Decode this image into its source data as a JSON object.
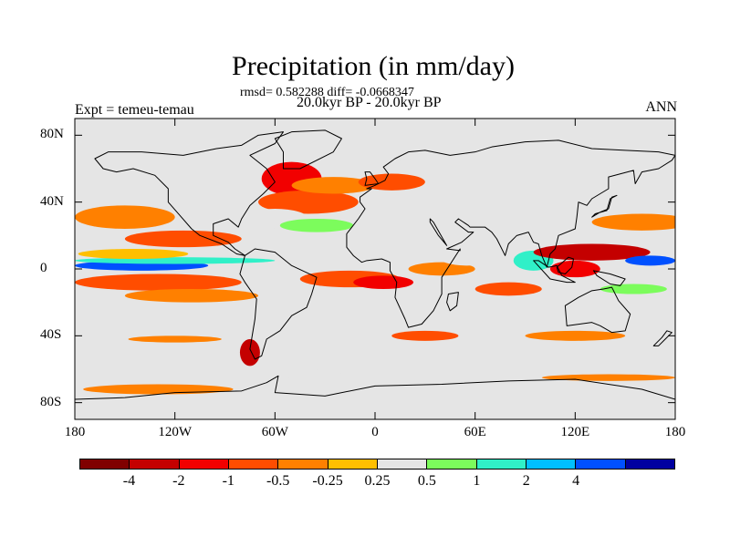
{
  "title": "Precipitation (in mm/day)",
  "stats_line": "rmsd= 0.582288 diff= -0.0668347",
  "period_line": "20.0kyr BP - 20.0kyr BP",
  "experiment_label": "Expt = temeu-temau",
  "season_label": "ANN",
  "map": {
    "projection": "cylindrical equidistant",
    "lon_range": [
      -180,
      180
    ],
    "lat_range": [
      -90,
      90
    ],
    "ocean_background": "#e5e5e5",
    "lat_ticks": [
      {
        "value": 80,
        "label": "80N"
      },
      {
        "value": 40,
        "label": "40N"
      },
      {
        "value": 0,
        "label": "0"
      },
      {
        "value": -40,
        "label": "40S"
      },
      {
        "value": -80,
        "label": "80S"
      }
    ],
    "lon_ticks": [
      {
        "value": -180,
        "label": "180"
      },
      {
        "value": -120,
        "label": "120W"
      },
      {
        "value": -60,
        "label": "60W"
      },
      {
        "value": 0,
        "label": "0"
      },
      {
        "value": 60,
        "label": "60E"
      },
      {
        "value": 120,
        "label": "120E"
      },
      {
        "value": 180,
        "label": "180"
      }
    ],
    "anomaly_patches": [
      {
        "lon": -150,
        "lat": 31,
        "rx": 30,
        "ry": 7,
        "level": 4
      },
      {
        "lon": -115,
        "lat": 18,
        "rx": 35,
        "ry": 5,
        "level": 3
      },
      {
        "lon": -140,
        "lat": 2,
        "rx": 40,
        "ry": 3,
        "level": 10
      },
      {
        "lon": -120,
        "lat": 5,
        "rx": 60,
        "ry": 2,
        "level": 8
      },
      {
        "lon": -145,
        "lat": 9,
        "rx": 33,
        "ry": 3,
        "level": 5
      },
      {
        "lon": -130,
        "lat": -8,
        "rx": 50,
        "ry": 5,
        "level": 3
      },
      {
        "lon": -110,
        "lat": -16,
        "rx": 40,
        "ry": 4,
        "level": 4
      },
      {
        "lon": -50,
        "lat": 54,
        "rx": 18,
        "ry": 10,
        "level": 2
      },
      {
        "lon": -40,
        "lat": 40,
        "rx": 30,
        "ry": 7,
        "level": 3
      },
      {
        "lon": -25,
        "lat": 50,
        "rx": 25,
        "ry": 5,
        "level": 4
      },
      {
        "lon": -60,
        "lat": 30,
        "rx": 20,
        "ry": 6,
        "level": 6
      },
      {
        "lon": -35,
        "lat": 26,
        "rx": 22,
        "ry": 4,
        "level": 7
      },
      {
        "lon": 10,
        "lat": 52,
        "rx": 20,
        "ry": 5,
        "level": 3
      },
      {
        "lon": 25,
        "lat": 62,
        "rx": 15,
        "ry": 4,
        "level": 6
      },
      {
        "lon": -15,
        "lat": -6,
        "rx": 30,
        "ry": 5,
        "level": 3
      },
      {
        "lon": 5,
        "lat": -8,
        "rx": 18,
        "ry": 4,
        "level": 2
      },
      {
        "lon": 40,
        "lat": 0,
        "rx": 20,
        "ry": 4,
        "level": 4
      },
      {
        "lon": 55,
        "lat": 8,
        "rx": 18,
        "ry": 6,
        "level": 6
      },
      {
        "lon": 80,
        "lat": -12,
        "rx": 20,
        "ry": 4,
        "level": 3
      },
      {
        "lon": 95,
        "lat": 5,
        "rx": 12,
        "ry": 6,
        "level": 8
      },
      {
        "lon": 130,
        "lat": 10,
        "rx": 35,
        "ry": 5,
        "level": 1
      },
      {
        "lon": 120,
        "lat": 0,
        "rx": 15,
        "ry": 5,
        "level": 2
      },
      {
        "lon": 160,
        "lat": 28,
        "rx": 30,
        "ry": 5,
        "level": 4
      },
      {
        "lon": 165,
        "lat": 5,
        "rx": 15,
        "ry": 3,
        "level": 10
      },
      {
        "lon": 155,
        "lat": -12,
        "rx": 20,
        "ry": 3,
        "level": 7
      },
      {
        "lon": -120,
        "lat": -42,
        "rx": 28,
        "ry": 2,
        "level": 4
      },
      {
        "lon": -75,
        "lat": -50,
        "rx": 6,
        "ry": 8,
        "level": 1
      },
      {
        "lon": 30,
        "lat": -40,
        "rx": 20,
        "ry": 3,
        "level": 3
      },
      {
        "lon": 120,
        "lat": -40,
        "rx": 30,
        "ry": 3,
        "level": 4
      },
      {
        "lon": -130,
        "lat": -72,
        "rx": 45,
        "ry": 3,
        "level": 4
      },
      {
        "lon": -40,
        "lat": -63,
        "rx": 20,
        "ry": 3,
        "level": 6
      },
      {
        "lon": 140,
        "lat": -65,
        "rx": 40,
        "ry": 2,
        "level": 4
      }
    ],
    "land_color": "#e5e5e5",
    "continents": [
      {
        "name": "north-america",
        "points": [
          [
            -168,
            66
          ],
          [
            -160,
            70
          ],
          [
            -140,
            70
          ],
          [
            -115,
            68
          ],
          [
            -95,
            72
          ],
          [
            -80,
            74
          ],
          [
            -70,
            80
          ],
          [
            -55,
            82
          ],
          [
            -60,
            75
          ],
          [
            -75,
            68
          ],
          [
            -65,
            60
          ],
          [
            -60,
            52
          ],
          [
            -67,
            45
          ],
          [
            -75,
            38
          ],
          [
            -80,
            30
          ],
          [
            -82,
            25
          ],
          [
            -88,
            30
          ],
          [
            -97,
            27
          ],
          [
            -97,
            20
          ],
          [
            -88,
            16
          ],
          [
            -84,
            12
          ],
          [
            -78,
            8
          ],
          [
            -83,
            9
          ],
          [
            -92,
            15
          ],
          [
            -105,
            20
          ],
          [
            -110,
            24
          ],
          [
            -117,
            32
          ],
          [
            -124,
            40
          ],
          [
            -124,
            48
          ],
          [
            -132,
            56
          ],
          [
            -145,
            60
          ],
          [
            -155,
            58
          ],
          [
            -163,
            60
          ]
        ]
      },
      {
        "name": "greenland",
        "points": [
          [
            -55,
            60
          ],
          [
            -45,
            60
          ],
          [
            -25,
            70
          ],
          [
            -20,
            78
          ],
          [
            -30,
            83
          ],
          [
            -50,
            82
          ],
          [
            -60,
            78
          ],
          [
            -55,
            70
          ]
        ]
      },
      {
        "name": "south-america",
        "points": [
          [
            -78,
            8
          ],
          [
            -72,
            12
          ],
          [
            -60,
            10
          ],
          [
            -50,
            2
          ],
          [
            -35,
            -5
          ],
          [
            -38,
            -15
          ],
          [
            -41,
            -23
          ],
          [
            -50,
            -28
          ],
          [
            -57,
            -37
          ],
          [
            -65,
            -42
          ],
          [
            -68,
            -52
          ],
          [
            -72,
            -54
          ],
          [
            -75,
            -48
          ],
          [
            -72,
            -30
          ],
          [
            -71,
            -18
          ],
          [
            -78,
            -8
          ],
          [
            -81,
            -3
          ]
        ]
      },
      {
        "name": "africa-eurasia",
        "points": [
          [
            -17,
            15
          ],
          [
            -17,
            21
          ],
          [
            -10,
            30
          ],
          [
            -6,
            36
          ],
          [
            -9,
            40
          ],
          [
            -9,
            43
          ],
          [
            -2,
            48
          ],
          [
            -5,
            48
          ],
          [
            0,
            50
          ],
          [
            6,
            53
          ],
          [
            8,
            57
          ],
          [
            5,
            61
          ],
          [
            12,
            66
          ],
          [
            20,
            70
          ],
          [
            30,
            71
          ],
          [
            45,
            68
          ],
          [
            60,
            70
          ],
          [
            70,
            73
          ],
          [
            90,
            76
          ],
          [
            110,
            77
          ],
          [
            130,
            72
          ],
          [
            150,
            71
          ],
          [
            170,
            70
          ],
          [
            180,
            68
          ],
          [
            178,
            65
          ],
          [
            170,
            60
          ],
          [
            160,
            58
          ],
          [
            156,
            51
          ],
          [
            155,
            59
          ],
          [
            140,
            55
          ],
          [
            140,
            48
          ],
          [
            130,
            42
          ],
          [
            127,
            38
          ],
          [
            122,
            40
          ],
          [
            121,
            31
          ],
          [
            120,
            24
          ],
          [
            110,
            20
          ],
          [
            108,
            12
          ],
          [
            105,
            9
          ],
          [
            103,
            1
          ],
          [
            100,
            8
          ],
          [
            98,
            15
          ],
          [
            95,
            16
          ],
          [
            92,
            22
          ],
          [
            85,
            20
          ],
          [
            80,
            15
          ],
          [
            78,
            8
          ],
          [
            73,
            18
          ],
          [
            70,
            22
          ],
          [
            66,
            25
          ],
          [
            57,
            25
          ],
          [
            56,
            26
          ],
          [
            50,
            30
          ],
          [
            48,
            28
          ],
          [
            56,
            22
          ],
          [
            59,
            22
          ],
          [
            52,
            16
          ],
          [
            43,
            12
          ],
          [
            51,
            11
          ],
          [
            51,
            12
          ],
          [
            40,
            -5
          ],
          [
            40,
            -15
          ],
          [
            35,
            -25
          ],
          [
            28,
            -33
          ],
          [
            20,
            -35
          ],
          [
            18,
            -30
          ],
          [
            12,
            -17
          ],
          [
            13,
            -8
          ],
          [
            9,
            -1
          ],
          [
            9,
            4
          ],
          [
            4,
            6
          ],
          [
            -5,
            5
          ],
          [
            -8,
            4
          ],
          [
            -13,
            8
          ],
          [
            -17,
            13
          ]
        ]
      },
      {
        "name": "madagascar",
        "points": [
          [
            44,
            -15
          ],
          [
            50,
            -14
          ],
          [
            49,
            -22
          ],
          [
            45,
            -25
          ],
          [
            43,
            -20
          ]
        ]
      },
      {
        "name": "arabia-gap",
        "points": [
          [
            33,
            30
          ],
          [
            35,
            28
          ],
          [
            43,
            14
          ],
          [
            38,
            20
          ],
          [
            33,
            28
          ]
        ]
      },
      {
        "name": "australia",
        "points": [
          [
            114,
            -22
          ],
          [
            122,
            -17
          ],
          [
            130,
            -13
          ],
          [
            137,
            -12
          ],
          [
            142,
            -11
          ],
          [
            146,
            -19
          ],
          [
            153,
            -27
          ],
          [
            150,
            -37
          ],
          [
            142,
            -38
          ],
          [
            135,
            -34
          ],
          [
            130,
            -32
          ],
          [
            115,
            -34
          ]
        ]
      },
      {
        "name": "indonesia",
        "points": [
          [
            95,
            5
          ],
          [
            105,
            -6
          ],
          [
            115,
            -8
          ],
          [
            120,
            -8
          ],
          [
            112,
            -4
          ],
          [
            109,
            2
          ],
          [
            104,
            1
          ],
          [
            98,
            5
          ]
        ]
      },
      {
        "name": "borneo-philippines",
        "points": [
          [
            109,
            1
          ],
          [
            116,
            7
          ],
          [
            119,
            6
          ],
          [
            118,
            1
          ],
          [
            114,
            -3
          ],
          [
            110,
            -2
          ]
        ]
      },
      {
        "name": "new-guinea",
        "points": [
          [
            131,
            -1
          ],
          [
            141,
            -3
          ],
          [
            150,
            -6
          ],
          [
            147,
            -10
          ],
          [
            141,
            -9
          ],
          [
            133,
            -4
          ]
        ]
      },
      {
        "name": "japan",
        "points": [
          [
            130,
            31
          ],
          [
            135,
            34
          ],
          [
            140,
            36
          ],
          [
            142,
            43
          ],
          [
            145,
            44
          ],
          [
            141,
            42
          ],
          [
            139,
            35
          ],
          [
            132,
            33
          ]
        ]
      },
      {
        "name": "uk",
        "points": [
          [
            -6,
            50
          ],
          [
            2,
            51
          ],
          [
            0,
            54
          ],
          [
            -3,
            58
          ],
          [
            -6,
            58
          ],
          [
            -5,
            54
          ]
        ]
      },
      {
        "name": "new-zealand",
        "points": [
          [
            167,
            -46
          ],
          [
            172,
            -41
          ],
          [
            175,
            -37
          ],
          [
            178,
            -38
          ],
          [
            174,
            -42
          ],
          [
            170,
            -46
          ]
        ]
      },
      {
        "name": "antarctica",
        "points": [
          [
            -180,
            -90
          ],
          [
            180,
            -90
          ],
          [
            180,
            -78
          ],
          [
            160,
            -72
          ],
          [
            120,
            -66
          ],
          [
            80,
            -67
          ],
          [
            40,
            -69
          ],
          [
            0,
            -70
          ],
          [
            -30,
            -76
          ],
          [
            -60,
            -74
          ],
          [
            -58,
            -64
          ],
          [
            -65,
            -68
          ],
          [
            -80,
            -73
          ],
          [
            -120,
            -74
          ],
          [
            -150,
            -77
          ],
          [
            -180,
            -78
          ]
        ]
      }
    ]
  },
  "colorbar": {
    "colors": [
      "#800000",
      "#c40000",
      "#f20000",
      "#ff4d00",
      "#ff8000",
      "#ffbf00",
      "#e5e5e5",
      "#7cfc5c",
      "#30f0c8",
      "#00bfff",
      "#0050ff",
      "#0000a0"
    ],
    "labels": [
      "-4",
      "-2",
      "-1",
      "-0.5",
      "-0.25",
      "0.25",
      "0.5",
      "1",
      "2",
      "4"
    ]
  }
}
